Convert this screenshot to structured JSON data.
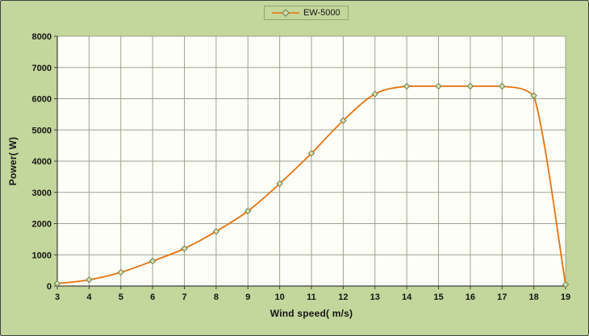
{
  "legend_label": "EW-5000",
  "colors": {
    "background": "#C3D69B",
    "plot_background": "#FEFEF8",
    "line": "#E8720C",
    "marker_fill": "#D4E0B4",
    "marker_stroke": "#6E7F49",
    "grid": "#9DA38E",
    "axis": "#3F3F3F",
    "text": "#141414",
    "frame": "#404040"
  },
  "chart_data": {
    "type": "line",
    "title": "",
    "xlabel": "Wind speed( m/s)",
    "ylabel": "Power( W)",
    "xlim": [
      3,
      19
    ],
    "ylim": [
      0,
      8000
    ],
    "x_ticks": [
      3,
      4,
      5,
      6,
      7,
      8,
      9,
      10,
      11,
      12,
      13,
      14,
      15,
      16,
      17,
      18,
      19
    ],
    "y_ticks": [
      0,
      1000,
      2000,
      3000,
      4000,
      5000,
      6000,
      7000,
      8000
    ],
    "grid": true,
    "smooth": true,
    "marker": "diamond",
    "legend_position": "top",
    "series": [
      {
        "name": "EW-5000",
        "x": [
          3,
          4,
          5,
          6,
          7,
          8,
          9,
          10,
          11,
          12,
          13,
          14,
          15,
          16,
          17,
          18,
          19
        ],
        "values": [
          80,
          200,
          440,
          800,
          1200,
          1750,
          2400,
          3280,
          4250,
          5300,
          6150,
          6400,
          6400,
          6400,
          6400,
          6100,
          50
        ]
      }
    ]
  }
}
